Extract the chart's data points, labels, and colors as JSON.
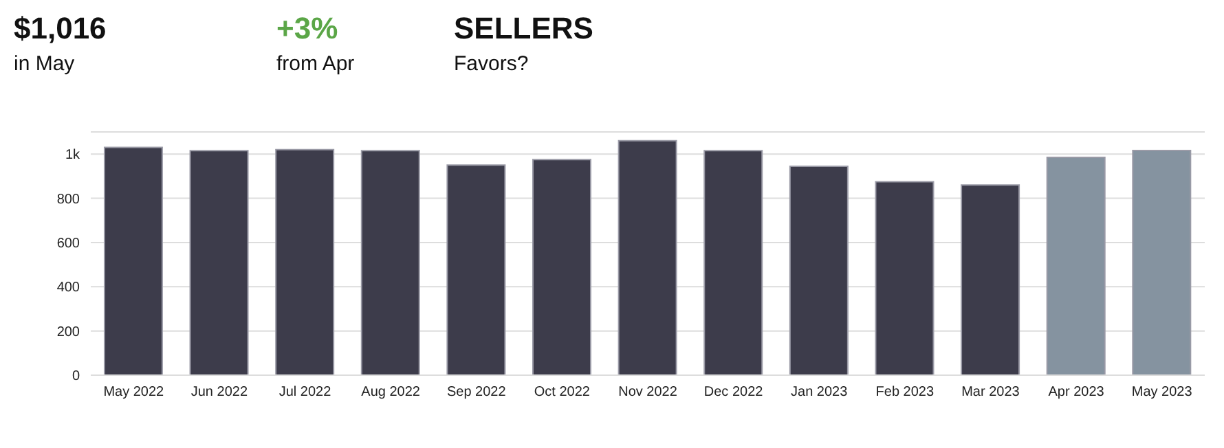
{
  "chart_data": {
    "type": "bar",
    "annotations": [
      "$1,016",
      "in May",
      "+3%",
      "from Apr",
      "SELLERS",
      "Favors?"
    ],
    "categories": [
      "May 2022",
      "Jun 2022",
      "Jul 2022",
      "Aug 2022",
      "Sep 2022",
      "Oct 2022",
      "Nov 2022",
      "Dec 2022",
      "Jan 2023",
      "Feb 2023",
      "Mar 2023",
      "Apr 2023",
      "May 2023"
    ],
    "values": [
      1030,
      1015,
      1020,
      1015,
      950,
      975,
      1060,
      1015,
      945,
      875,
      860,
      985,
      1016
    ],
    "colors": [
      "#3d3c4b",
      "#3d3c4b",
      "#3d3c4b",
      "#3d3c4b",
      "#3d3c4b",
      "#3d3c4b",
      "#3d3c4b",
      "#3d3c4b",
      "#3d3c4b",
      "#3d3c4b",
      "#3d3c4b",
      "#8593a0",
      "#8593a0"
    ],
    "ylim": [
      0,
      1100
    ],
    "yticks": [
      0,
      200,
      400,
      600,
      800,
      {
        "value": 1000,
        "label": "1k"
      }
    ],
    "grid": "y"
  }
}
